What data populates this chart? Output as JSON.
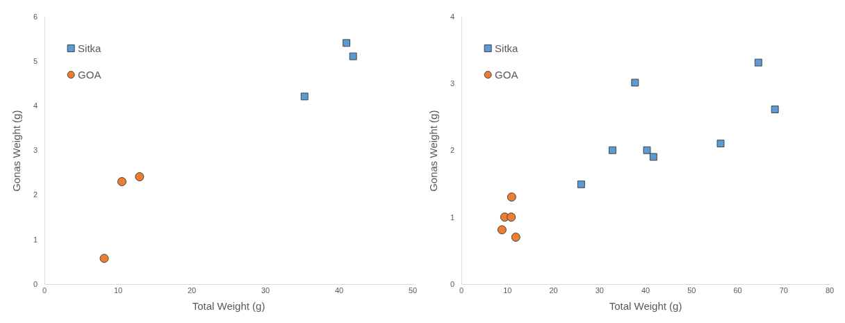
{
  "chart_data": [
    {
      "type": "scatter",
      "xlabel": "Total Weight (g)",
      "ylabel": "Gonas Weight (g)",
      "xlim": [
        0,
        50
      ],
      "xticks": [
        0,
        10,
        20,
        30,
        40,
        50
      ],
      "ylim": [
        0,
        6
      ],
      "yticks": [
        0,
        1,
        2,
        3,
        4,
        5,
        6
      ],
      "grid": false,
      "legend": "top left",
      "series": [
        {
          "name": "Sitka",
          "color": "#5b9bd5",
          "marker": "square",
          "x": [
            41.0,
            41.9,
            35.3
          ],
          "values": [
            5.42,
            5.12,
            4.22
          ]
        },
        {
          "name": "GOA",
          "color": "#ed7d31",
          "marker": "circle",
          "x": [
            12.9,
            10.5,
            8.1
          ],
          "values": [
            2.42,
            2.31,
            0.59
          ]
        }
      ]
    },
    {
      "type": "scatter",
      "xlabel": "Total Weight (g)",
      "ylabel": "Gonas Weight (g)",
      "xlim": [
        0,
        80
      ],
      "xticks": [
        0,
        10,
        20,
        30,
        40,
        50,
        60,
        70,
        80
      ],
      "ylim": [
        0,
        4
      ],
      "yticks": [
        0,
        1,
        2,
        3,
        4
      ],
      "grid": false,
      "legend": "top left",
      "series": [
        {
          "name": "Sitka",
          "color": "#5b9bd5",
          "marker": "square",
          "x": [
            26.0,
            32.8,
            37.7,
            40.3,
            41.7,
            56.3,
            64.5,
            68.1
          ],
          "values": [
            1.5,
            2.01,
            3.02,
            2.01,
            1.91,
            2.11,
            3.32,
            2.62
          ]
        },
        {
          "name": "GOA",
          "color": "#ed7d31",
          "marker": "circle",
          "x": [
            10.9,
            9.4,
            10.8,
            8.8,
            11.8
          ],
          "values": [
            1.31,
            1.01,
            1.01,
            0.82,
            0.71
          ]
        }
      ]
    }
  ]
}
